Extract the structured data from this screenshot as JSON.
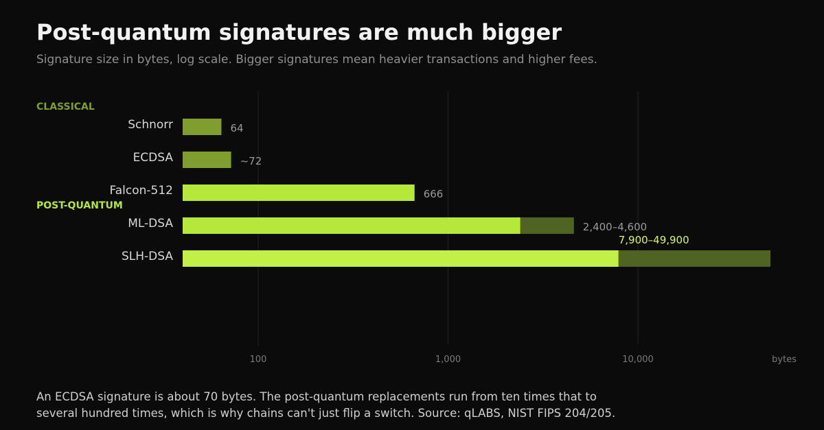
{
  "title": "Post-quantum signatures are much bigger",
  "subtitle": "Signature size in bytes, log scale. Bigger signatures mean heavier transactions and higher fees.",
  "footnote": {
    "line1": "An ECDSA signature is about 70 bytes. The post-quantum replacements run from ten times that to",
    "line2": "several hundred times, which is why chains can't just flip a switch. Source: qLABS, NIST FIPS 204/205."
  },
  "colors": {
    "background": "#0b0b0b",
    "classical": "#7f9e2f",
    "classical_label": "#7f9e2f",
    "pq": "#b5e83a",
    "pq_range": "#4f6423",
    "slh": "#c2f046",
    "slh_label": "#d6f56a",
    "value_label": "#9a9a9a",
    "grid": "#222222",
    "tick": "#7a7a7a"
  },
  "chart_data": {
    "type": "bar",
    "orientation": "horizontal",
    "x_scale": "log",
    "xlim": [
      40,
      70000
    ],
    "xticks": [
      100,
      1000,
      10000
    ],
    "xtick_labels": [
      "100",
      "1,000",
      "10,000"
    ],
    "x_unit_label": "bytes",
    "grid": true,
    "groups": [
      {
        "label": "CLASSICAL",
        "color_key": "classical_label"
      },
      {
        "label": "POST-QUANTUM",
        "color_key": "pq"
      }
    ],
    "bars": [
      {
        "category": "Schnorr",
        "group": "CLASSICAL",
        "low": 64,
        "high": 64,
        "label": "64",
        "color_key": "classical"
      },
      {
        "category": "ECDSA",
        "group": "CLASSICAL",
        "low": 72,
        "high": 72,
        "label": "~72",
        "color_key": "classical"
      },
      {
        "category": "Falcon-512",
        "group": "POST-QUANTUM",
        "low": 666,
        "high": 666,
        "label": "666",
        "color_key": "pq"
      },
      {
        "category": "ML-DSA",
        "group": "POST-QUANTUM",
        "low": 2400,
        "high": 4600,
        "label": "2,400–4,600",
        "color_key": "pq"
      },
      {
        "category": "SLH-DSA",
        "group": "POST-QUANTUM",
        "low": 7900,
        "high": 49900,
        "label": "7,900–49,900",
        "color_key": "slh"
      }
    ]
  }
}
